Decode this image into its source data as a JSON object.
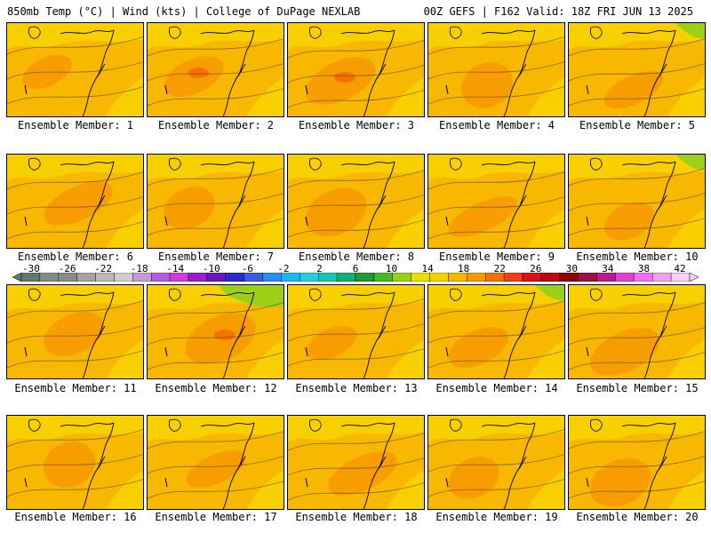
{
  "header": {
    "left": "850mb Temp (°C) | Wind (kts) | College of DuPage NEXLAB",
    "right": "00Z GEFS | F162 Valid: 18Z FRI JUN 13 2025"
  },
  "colorbar": {
    "labels": [
      "-30",
      "-26",
      "-22",
      "-18",
      "-14",
      "-10",
      "-6",
      "-2",
      "2",
      "6",
      "10",
      "14",
      "18",
      "22",
      "26",
      "30",
      "34",
      "38",
      "42"
    ],
    "colors": [
      "#5e7a6a",
      "#7f8f86",
      "#8a8a8a",
      "#a3a3a3",
      "#b9b9b9",
      "#cfcfcf",
      "#c59ad8",
      "#b05de0",
      "#d23cd8",
      "#9a1fd0",
      "#6a16c0",
      "#2a2ac8",
      "#3a5ae0",
      "#2a8ef0",
      "#18b8f0",
      "#20d0e0",
      "#10c8b0",
      "#10b070",
      "#209a30",
      "#48b820",
      "#9ad018",
      "#e8e000",
      "#f8d000",
      "#f8b800",
      "#f89800",
      "#f87000",
      "#f04018",
      "#e01010",
      "#c00808",
      "#900000",
      "#a01040",
      "#c01890",
      "#e040d0",
      "#f070f0",
      "#f0a0f0",
      "#f8d0f8"
    ]
  },
  "panels": [
    {
      "member": "Ensemble Member: 1"
    },
    {
      "member": "Ensemble Member: 2"
    },
    {
      "member": "Ensemble Member: 3"
    },
    {
      "member": "Ensemble Member: 4"
    },
    {
      "member": "Ensemble Member: 5"
    },
    {
      "member": "Ensemble Member: 6"
    },
    {
      "member": "Ensemble Member: 7"
    },
    {
      "member": "Ensemble Member: 8"
    },
    {
      "member": "Ensemble Member: 9"
    },
    {
      "member": "Ensemble Member: 10"
    },
    {
      "member": "Ensemble Member: 11"
    },
    {
      "member": "Ensemble Member: 12"
    },
    {
      "member": "Ensemble Member: 13"
    },
    {
      "member": "Ensemble Member: 14"
    },
    {
      "member": "Ensemble Member: 15"
    },
    {
      "member": "Ensemble Member: 16"
    },
    {
      "member": "Ensemble Member: 17"
    },
    {
      "member": "Ensemble Member: 18"
    },
    {
      "member": "Ensemble Member: 19"
    },
    {
      "member": "Ensemble Member: 20"
    }
  ]
}
